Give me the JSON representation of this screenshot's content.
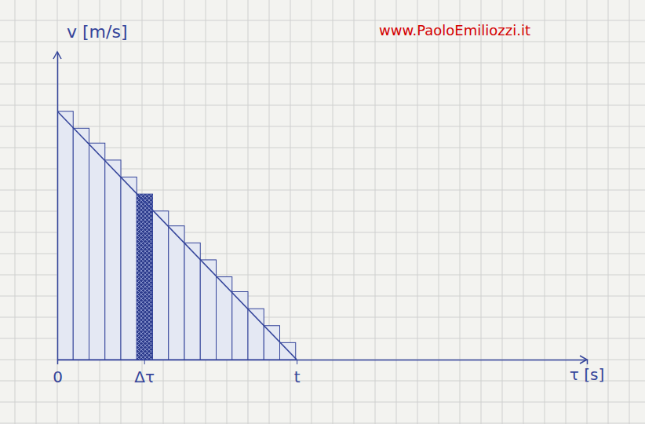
{
  "chart_data": {
    "type": "line",
    "watermark": "www.PaoloEmiliozzi.it",
    "y_label": "v [m/s]",
    "x_label": "τ [s]",
    "xlim": [
      0,
      25
    ],
    "ylim": [
      0,
      14.5
    ],
    "xticks": [
      0,
      {
        "value": 4.1,
        "label": "Δτ"
      },
      {
        "value": 11.3,
        "label": "t"
      }
    ],
    "yticks": [],
    "tick_labels": "x",
    "series": [
      {
        "type": "line",
        "color": "#34449a",
        "x": [
          0,
          11.3
        ],
        "values": [
          11.7,
          0
        ]
      },
      {
        "type": "bar",
        "color": "#34449a",
        "bins": [
          0,
          0.75,
          1.5,
          2.25,
          3,
          3.75,
          4.5,
          5.25,
          6,
          6.75,
          7.5,
          8.25,
          9,
          9.75,
          10.5,
          11.25
        ],
        "values": [
          11.7,
          10.9,
          10.2,
          9.4,
          8.6,
          7.8,
          7.0,
          6.3,
          5.5,
          4.7,
          3.9,
          3.2,
          2.4,
          1.6,
          0.8
        ],
        "colors": [
          "#e4e8f3",
          "#e4e8f3",
          "#e4e8f3",
          "#e4e8f3",
          "#e4e8f3",
          "#2c3b8c",
          "#e4e8f3",
          "#e4e8f3",
          "#e4e8f3",
          "#e4e8f3",
          "#e4e8f3",
          "#e4e8f3",
          "#e4e8f3",
          "#e4e8f3",
          "#e4e8f3"
        ]
      }
    ]
  }
}
